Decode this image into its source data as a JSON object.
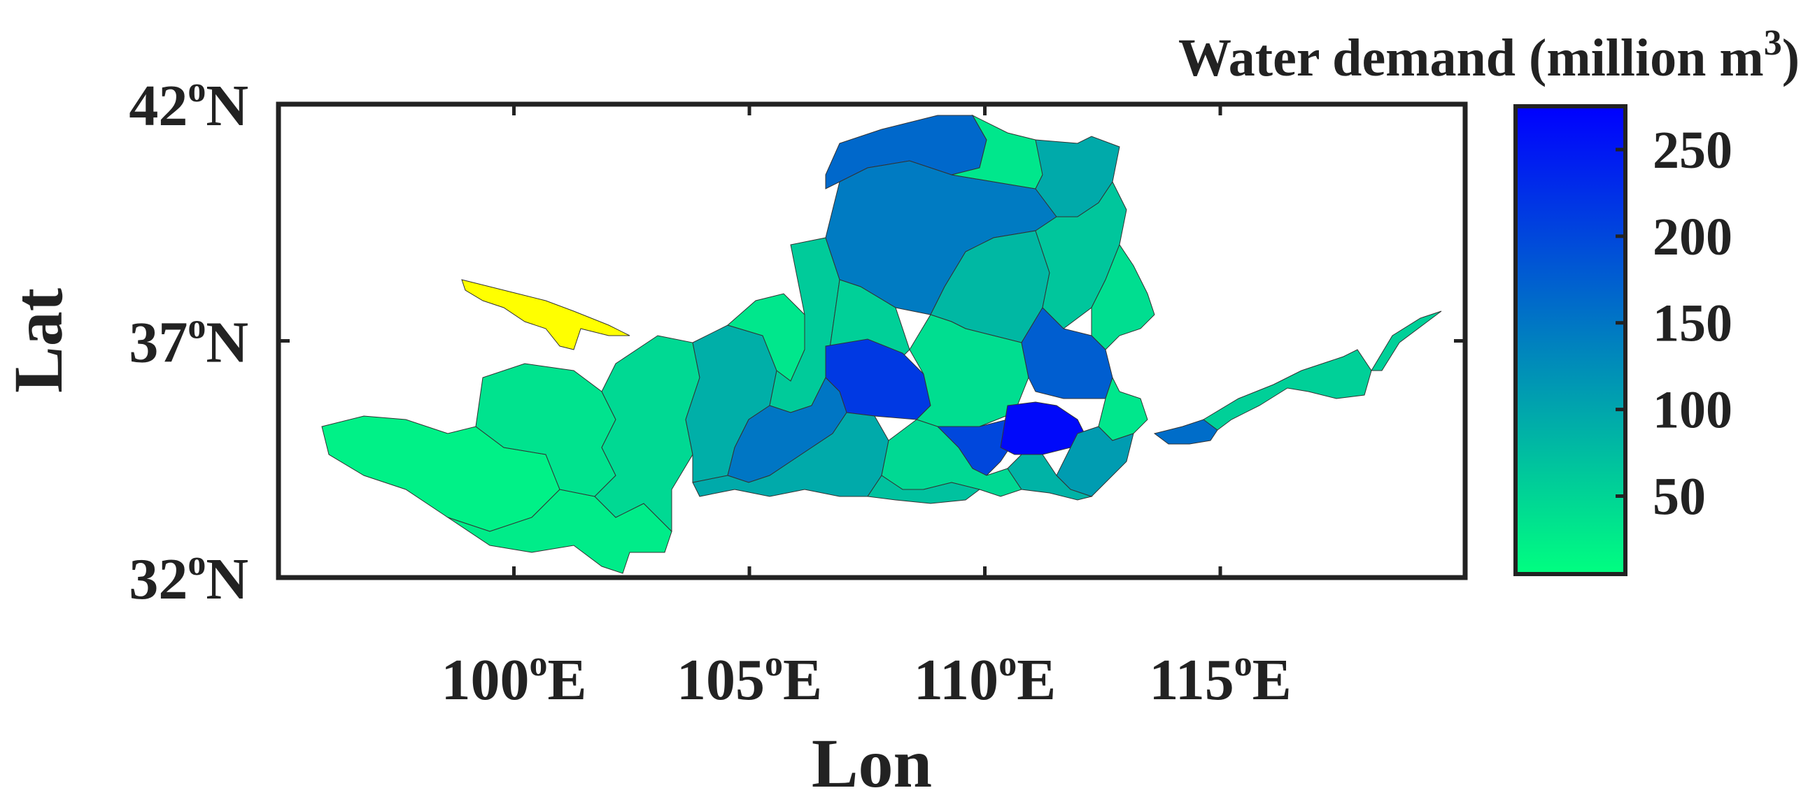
{
  "map": {
    "xlabel": "Lon",
    "ylabel": "Lat",
    "lon_range": [
      95,
      120.2
    ],
    "lat_range": [
      32,
      42
    ],
    "lon_ticks": [
      {
        "value": 100,
        "num": "100",
        "sup": "o",
        "dir": "E"
      },
      {
        "value": 105,
        "num": "105",
        "sup": "o",
        "dir": "E"
      },
      {
        "value": 110,
        "num": "110",
        "sup": "o",
        "dir": "E"
      },
      {
        "value": 115,
        "num": "115",
        "sup": "o",
        "dir": "E"
      }
    ],
    "lat_ticks": [
      {
        "value": 32,
        "num": "32",
        "sup": "o",
        "dir": "N"
      },
      {
        "value": 37,
        "num": "37",
        "sup": "o",
        "dir": "N"
      },
      {
        "value": 42,
        "num": "42",
        "sup": "o",
        "dir": "N"
      }
    ]
  },
  "colorbar": {
    "title_main": "Water demand (million m",
    "title_sup": "3",
    "title_end": ")",
    "range": [
      5,
      275
    ],
    "ticks": [
      50,
      100,
      150,
      200,
      250
    ],
    "colors": [
      "#00ff80",
      "#0000ff"
    ],
    "highlight_color": "#ffff00"
  },
  "chart_data": {
    "type": "heatmap",
    "title": "",
    "xlabel": "Lon",
    "ylabel": "Lat",
    "x_range": [
      95,
      120.2
    ],
    "y_range": [
      32,
      42
    ],
    "colorbar_label": "Water demand (million m3)",
    "colorbar_range": [
      5,
      275
    ],
    "regions": [
      {
        "id": "wuhai-strip",
        "value": 0,
        "color": "#ffff00"
      },
      {
        "id": "source-region-west",
        "value": 20
      },
      {
        "id": "source-region-south",
        "value": 25
      },
      {
        "id": "source-region-east",
        "value": 35
      },
      {
        "id": "upper-region",
        "value": 45
      },
      {
        "id": "lanzhou-region",
        "value": 90
      },
      {
        "id": "gansu-north",
        "value": 30
      },
      {
        "id": "ningxia-region",
        "value": 60
      },
      {
        "id": "inner-mongolia-northwest",
        "value": 165
      },
      {
        "id": "inner-mongolia-central",
        "value": 145
      },
      {
        "id": "inner-mongolia-north",
        "value": 30
      },
      {
        "id": "inner-mongolia-northeast",
        "value": 95
      },
      {
        "id": "ordos-west",
        "value": 55
      },
      {
        "id": "ordos-central",
        "value": 80
      },
      {
        "id": "shanxi-north",
        "value": 65
      },
      {
        "id": "shanxi-northeast",
        "value": 40
      },
      {
        "id": "shaanxi-north-a",
        "value": 215
      },
      {
        "id": "shaanxi-north-b",
        "value": 40
      },
      {
        "id": "shanxi-central",
        "value": 175
      },
      {
        "id": "shanxi-east",
        "value": 30
      },
      {
        "id": "wei-river-west",
        "value": 150
      },
      {
        "id": "wei-river-central",
        "value": 95
      },
      {
        "id": "guanzhong-east",
        "value": 200
      },
      {
        "id": "sanmenxia-region",
        "value": 265
      },
      {
        "id": "yiluo-region",
        "value": 110
      },
      {
        "id": "henan-south",
        "value": 45
      },
      {
        "id": "lower-yellow-a",
        "value": 160
      },
      {
        "id": "lower-yellow-b",
        "value": 70
      },
      {
        "id": "shandong-region",
        "value": 85
      },
      {
        "id": "estuary-region",
        "value": 55
      }
    ]
  }
}
